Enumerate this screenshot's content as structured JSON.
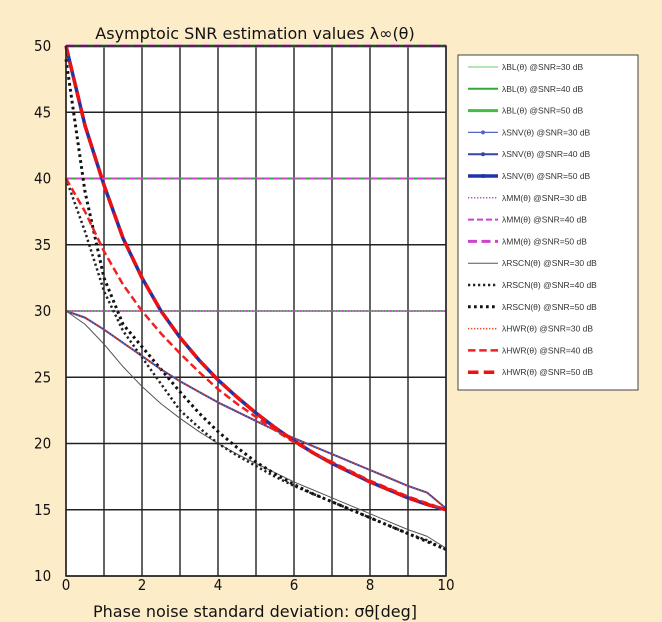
{
  "background_color": "#fdecc8",
  "chart_data": {
    "type": "line",
    "title": "Asymptoic SNR estimation values λ∞(θ)",
    "xlabel": "Phase noise standard deviation: σθ[deg]",
    "ylabel": "",
    "xlim": [
      0,
      10
    ],
    "ylim": [
      10,
      50
    ],
    "xticks": [
      0,
      2,
      4,
      6,
      8,
      10
    ],
    "yticks": [
      10,
      15,
      20,
      25,
      30,
      35,
      40,
      45,
      50
    ],
    "grid": true,
    "legend_position": "right",
    "x": [
      0,
      0.5,
      1,
      1.5,
      2,
      2.5,
      3,
      3.5,
      4,
      4.5,
      5,
      5.5,
      6,
      6.5,
      7,
      7.5,
      8,
      8.5,
      9,
      9.5,
      10
    ],
    "series": [
      {
        "name": "λBL(θ) @SNR=30 dB",
        "color": "#66cc66",
        "style": "solid",
        "width": 1,
        "values": [
          30,
          30,
          30,
          30,
          30,
          30,
          30,
          30,
          30,
          30,
          30,
          30,
          30,
          30,
          30,
          30,
          30,
          30,
          30,
          30,
          30
        ]
      },
      {
        "name": "λBL(θ) @SNR=40 dB",
        "color": "#33aa33",
        "style": "solid",
        "width": 2,
        "values": [
          40,
          40,
          40,
          40,
          40,
          40,
          40,
          40,
          40,
          40,
          40,
          40,
          40,
          40,
          40,
          40,
          40,
          40,
          40,
          40,
          40
        ]
      },
      {
        "name": "λBL(θ) @SNR=50 dB",
        "color": "#44bb44",
        "style": "solid",
        "width": 3,
        "values": [
          50,
          50,
          50,
          50,
          50,
          50,
          50,
          50,
          50,
          50,
          50,
          50,
          50,
          50,
          50,
          50,
          50,
          50,
          50,
          50,
          50
        ]
      },
      {
        "name": "λSNV(θ) @SNR=30 dB",
        "color": "#5566bb",
        "style": "solid",
        "width": 1.2,
        "values": [
          30,
          29.5,
          28.6,
          27.6,
          26.6,
          25.6,
          24.7,
          23.9,
          23.1,
          22.4,
          21.7,
          21.0,
          20.4,
          19.8,
          19.2,
          18.6,
          18.0,
          17.4,
          16.8,
          16.3,
          15.1
        ]
      },
      {
        "name": "λSNV(θ) @SNR=40 dB",
        "color": "#3344aa",
        "style": "solid",
        "width": 2,
        "values": [
          30,
          29.5,
          28.6,
          27.6,
          26.6,
          25.6,
          24.7,
          23.9,
          23.1,
          22.4,
          21.7,
          21.0,
          20.4,
          19.8,
          19.2,
          18.6,
          18.0,
          17.4,
          16.8,
          16.3,
          15.1
        ]
      },
      {
        "name": "λSNV(θ) @SNR=50 dB",
        "color": "#2233aa",
        "style": "solid",
        "width": 3.5,
        "values": [
          50,
          44,
          39.5,
          35.5,
          32.5,
          30,
          28,
          26.3,
          24.8,
          23.5,
          22.3,
          21.2,
          20.2,
          19.3,
          18.5,
          17.8,
          17.1,
          16.5,
          15.9,
          15.4,
          15.0
        ]
      },
      {
        "name": "λMM(θ) @SNR=30 dB",
        "color": "#cc44cc",
        "style": "dotted",
        "width": 1.5,
        "values": [
          30,
          30,
          30,
          30,
          30,
          30,
          30,
          30,
          30,
          30,
          30,
          30,
          30,
          30,
          30,
          30,
          30,
          30,
          30,
          30,
          30
        ]
      },
      {
        "name": "λMM(θ) @SNR=40 dB",
        "color": "#cc44cc",
        "style": "dashed",
        "width": 2,
        "values": [
          40,
          40,
          40,
          40,
          40,
          40,
          40,
          40,
          40,
          40,
          40,
          40,
          40,
          40,
          40,
          40,
          40,
          40,
          40,
          40,
          40
        ]
      },
      {
        "name": "λMM(θ) @SNR=50 dB",
        "color": "#cc44cc",
        "style": "dashed",
        "width": 3,
        "values": [
          50,
          50,
          50,
          50,
          50,
          50,
          50,
          50,
          50,
          50,
          50,
          50,
          50,
          50,
          50,
          50,
          50,
          50,
          50,
          50,
          50
        ]
      },
      {
        "name": "λRSCN(θ) @SNR=30 dB",
        "color": "#555555",
        "style": "solid",
        "width": 1,
        "values": [
          30,
          29,
          27.5,
          25.8,
          24.3,
          23,
          21.9,
          20.9,
          20,
          19.2,
          18.5,
          17.8,
          17.1,
          16.5,
          15.9,
          15.3,
          14.7,
          14.1,
          13.5,
          13.0,
          12.1
        ]
      },
      {
        "name": "λRSCN(θ) @SNR=40 dB",
        "color": "#222222",
        "style": "dotted",
        "width": 2.5,
        "values": [
          40,
          36,
          31.5,
          28.5,
          26.5,
          24.5,
          22.5,
          21.2,
          20,
          19.1,
          18.3,
          17.5,
          16.8,
          16.2,
          15.6,
          15,
          14.4,
          13.8,
          13.2,
          12.7,
          12.0
        ]
      },
      {
        "name": "λRSCN(θ) @SNR=50 dB",
        "color": "#111111",
        "style": "dotted",
        "width": 3,
        "values": [
          49,
          39,
          32.5,
          29,
          27.3,
          25.6,
          23.9,
          22.3,
          20.9,
          19.7,
          18.6,
          17.7,
          16.9,
          16.2,
          15.6,
          15.0,
          14.4,
          13.8,
          13.2,
          12.6,
          12.0
        ]
      },
      {
        "name": "λHWR(θ) @SNR=30 dB",
        "color": "#ee4422",
        "style": "dotted",
        "width": 1.5,
        "values": [
          30,
          29.5,
          28.6,
          27.6,
          26.6,
          25.6,
          24.7,
          23.9,
          23.1,
          22.4,
          21.7,
          21.0,
          20.4,
          19.8,
          19.2,
          18.6,
          18.0,
          17.4,
          16.8,
          16.3,
          15.1
        ]
      },
      {
        "name": "λHWR(θ) @SNR=40 dB",
        "color": "#ee2222",
        "style": "dashed",
        "width": 2.5,
        "values": [
          40,
          37.5,
          34.5,
          32,
          30,
          28.3,
          26.8,
          25.4,
          24.1,
          23,
          22,
          21,
          20.1,
          19.3,
          18.6,
          17.9,
          17.2,
          16.6,
          16,
          15.5,
          15.0
        ]
      },
      {
        "name": "λHWR(θ) @SNR=50 dB",
        "color": "#ee1111",
        "style": "dashed",
        "width": 3.5,
        "values": [
          50,
          44,
          39.5,
          35.5,
          32.5,
          30,
          28,
          26.3,
          24.8,
          23.5,
          22.3,
          21.2,
          20.2,
          19.3,
          18.5,
          17.8,
          17.1,
          16.5,
          15.9,
          15.4,
          15.0
        ]
      }
    ]
  }
}
